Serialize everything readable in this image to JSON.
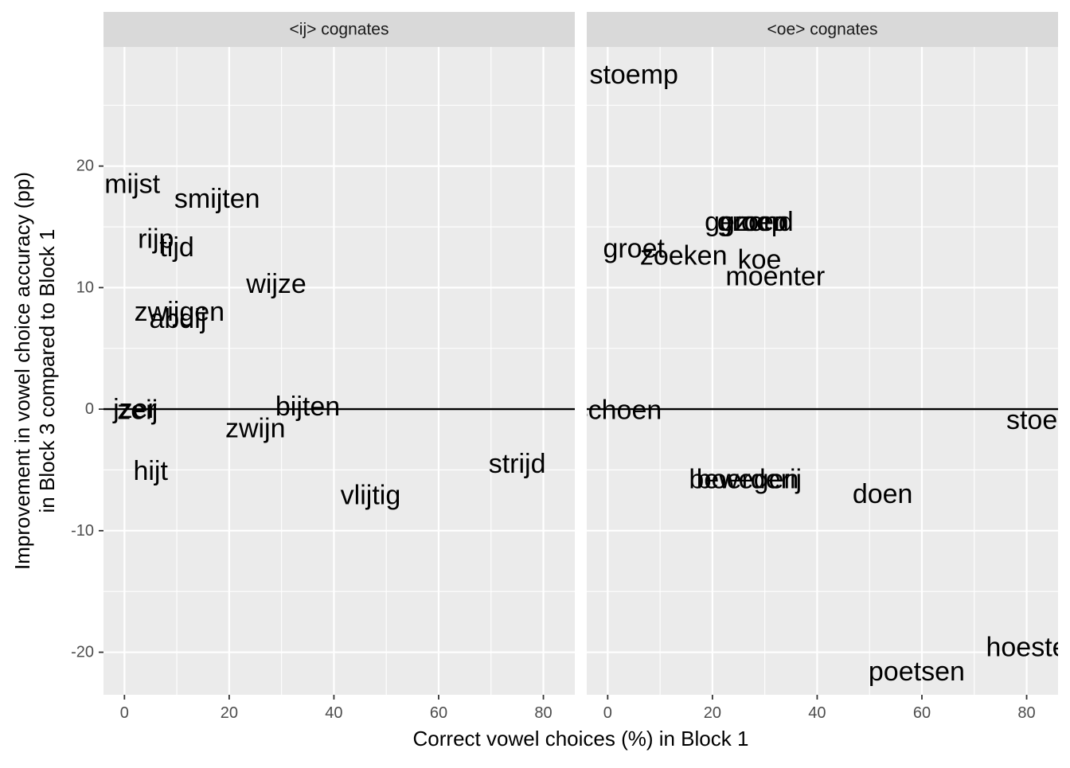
{
  "chart_data": {
    "type": "scatter",
    "xlabel": "Correct vowel choices (%) in Block 1",
    "ylabel": [
      "Improvement in vowel choice accuracy (pp)",
      "in Block 3 compared to Block 1"
    ],
    "xlim": [
      -4,
      86
    ],
    "ylim": [
      -23.5,
      29.8
    ],
    "xticks": [
      0,
      20,
      40,
      60,
      80
    ],
    "yticks": [
      -20,
      -10,
      0,
      10,
      20
    ],
    "hline": 0,
    "grid": true,
    "legend": "none",
    "panels": [
      {
        "strip": "<ij> cognates",
        "points": [
          {
            "label": "mijst",
            "x": 1.5,
            "y": 18.5
          },
          {
            "label": "smijten",
            "x": 17.7,
            "y": 17.3
          },
          {
            "label": "rijp",
            "x": 6,
            "y": 14
          },
          {
            "label": "tijd",
            "x": 10,
            "y": 13.3
          },
          {
            "label": "wijze",
            "x": 29,
            "y": 10.3
          },
          {
            "label": "zwijgen",
            "x": 10.5,
            "y": 8
          },
          {
            "label": "abdij",
            "x": 10.2,
            "y": 7.4
          },
          {
            "label": "jzer",
            "x": 2,
            "y": 0
          },
          {
            "label": "zeij",
            "x": 2.5,
            "y": -0.1
          },
          {
            "label": "bijten",
            "x": 35,
            "y": 0.2
          },
          {
            "label": "zwijn",
            "x": 25,
            "y": -1.6
          },
          {
            "label": "strijd",
            "x": 75,
            "y": -4.5
          },
          {
            "label": "hijt",
            "x": 5,
            "y": -5.1
          },
          {
            "label": "vlijtig",
            "x": 47,
            "y": -7.1
          }
        ]
      },
      {
        "strip": "<oe> cognates",
        "points": [
          {
            "label": "stoemp",
            "x": 5,
            "y": 27.5
          },
          {
            "label": "gezond",
            "x": 27,
            "y": 15.4
          },
          {
            "label": "groep",
            "x": 27.5,
            "y": 15.4
          },
          {
            "label": "groen",
            "x": 28,
            "y": 15.4
          },
          {
            "label": "groet",
            "x": 5,
            "y": 13.2
          },
          {
            "label": "zoeken",
            "x": 14.5,
            "y": 12.6
          },
          {
            "label": "koe",
            "x": 29,
            "y": 12.3
          },
          {
            "label": "moenter",
            "x": 32,
            "y": 10.9
          },
          {
            "label": "schoen",
            "x": 2,
            "y": -0.1
          },
          {
            "label": "stoe",
            "x": 81,
            "y": -0.9
          },
          {
            "label": "bewegen",
            "x": 26,
            "y": -5.8
          },
          {
            "label": "boerderij",
            "x": 27,
            "y": -5.8
          },
          {
            "label": "doen",
            "x": 52.5,
            "y": -7
          },
          {
            "label": "hoeste",
            "x": 80,
            "y": -19.6
          },
          {
            "label": "poetsen",
            "x": 59,
            "y": -21.6
          }
        ]
      }
    ]
  }
}
